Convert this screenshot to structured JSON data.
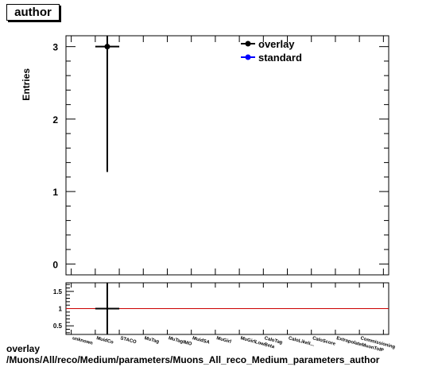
{
  "chart_data": {
    "type": "scatter",
    "title": "author",
    "ylabel": "Entries",
    "categories": [
      "unknown",
      "MuidCo",
      "STACO",
      "MuTag",
      "MuTagIMO",
      "MuidSA",
      "MuGirl",
      "MuGirlLowBeta",
      "CaloTag",
      "CaloLikelihood",
      "CaloScore",
      "ExtrapolateMuonToIP",
      "Commissioning"
    ],
    "category_labels_shown": [
      "unknown",
      "MuidCo",
      "STACO",
      "MuTag",
      "MuTagIMO",
      "MuidSA",
      "MuGirl",
      "MuGirlLowBeta",
      "CaloTag",
      "CaloLikeli...",
      "CaloScore",
      "ExtrapolateMuonToIP",
      "Commissioning"
    ],
    "ylim": [
      -0.15,
      3.15
    ],
    "yticks": [
      0,
      1,
      2,
      3
    ],
    "series": [
      {
        "name": "overlay",
        "color": "#000000",
        "points": [
          {
            "category": "MuidCo",
            "y": 3,
            "err_low": 1.73,
            "err_high": 1.73
          }
        ]
      },
      {
        "name": "standard",
        "color": "#0000ff",
        "points": []
      }
    ],
    "ratio": {
      "yticks": [
        0.5,
        1,
        1.5
      ],
      "ylim": [
        0.25,
        1.75
      ],
      "reference_line": 1,
      "reference_color": "#cc0000",
      "points": [
        {
          "category": "MuidCo",
          "y": 1,
          "err_low": 1,
          "err_high": 1
        }
      ]
    },
    "legend": "top-right",
    "grid": false
  },
  "footer": {
    "line1": "overlay",
    "line2": "/Muons/All/reco/Medium/parameters/Muons_All_reco_Medium_parameters_author"
  }
}
